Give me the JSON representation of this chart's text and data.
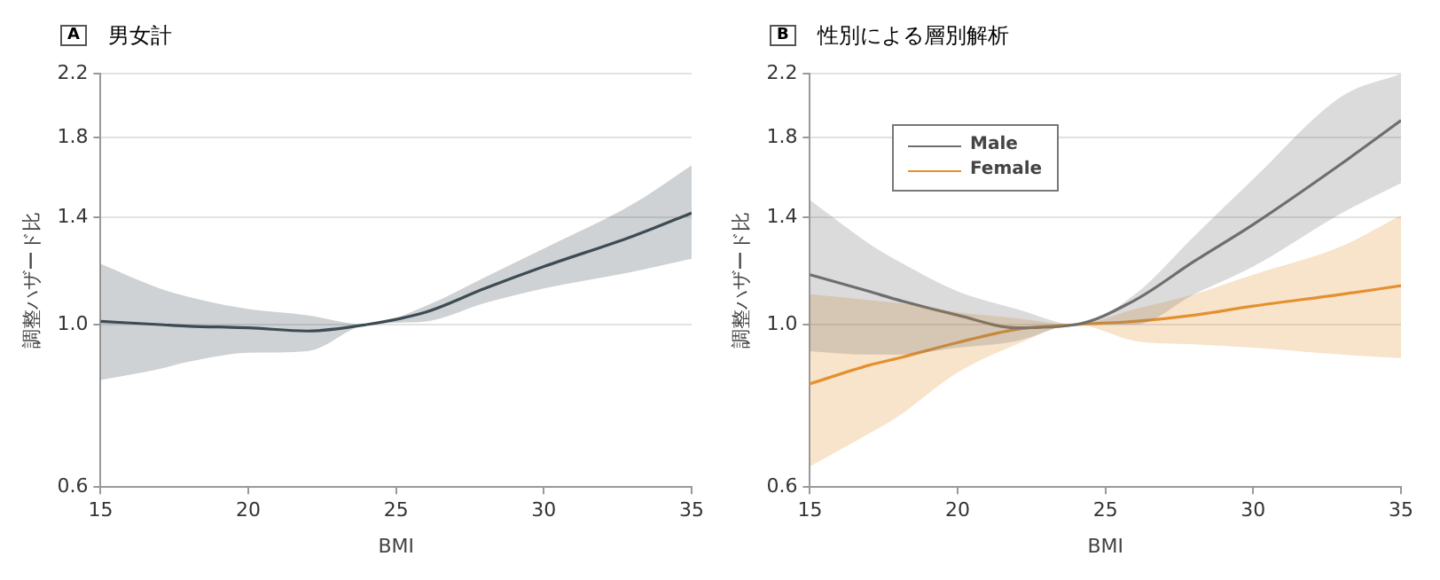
{
  "chart_data": [
    {
      "type": "line",
      "annotations": [
        "A"
      ],
      "title": "男女計",
      "xlabel": "BMI",
      "ylabel": "調整ハザード比",
      "x": [
        15,
        17,
        18,
        20,
        22,
        24,
        26,
        28,
        30,
        33,
        35
      ],
      "xlim": [
        15,
        35
      ],
      "xticks": [
        15,
        20,
        25,
        30,
        35
      ],
      "ylim": [
        0.6,
        2.2
      ],
      "yticks": [
        0.6,
        {
          "value": 1,
          "label": "1.0"
        },
        1.4,
        1.8,
        2.2
      ],
      "log": "y",
      "grid": "y",
      "legend": false,
      "marker": "none",
      "line_style": "solid",
      "series": [
        {
          "color": "#3d4b55",
          "values": [
            1.01,
            1.0,
            0.995,
            0.99,
            0.98,
            1.0,
            1.04,
            1.12,
            1.2,
            1.32,
            1.42
          ],
          "lower": [
            0.84,
            0.87,
            0.89,
            0.915,
            0.92,
            1.0,
            1.01,
            1.07,
            1.12,
            1.18,
            1.23
          ],
          "upper": [
            1.21,
            1.12,
            1.09,
            1.05,
            1.03,
            1.0,
            1.06,
            1.16,
            1.27,
            1.46,
            1.65
          ]
        }
      ]
    },
    {
      "type": "line",
      "annotations": [
        "B"
      ],
      "title": "性別による層別解析",
      "xlabel": "BMI",
      "ylabel": "調整ハザード比",
      "x": [
        15,
        17,
        18,
        20,
        22,
        24,
        26,
        28,
        30,
        33,
        35
      ],
      "xlim": [
        15,
        35
      ],
      "xticks": [
        15,
        20,
        25,
        30,
        35
      ],
      "ylim": [
        0.6,
        2.2
      ],
      "yticks": [
        0.6,
        {
          "value": 1,
          "label": "1.0"
        },
        1.4,
        1.8,
        2.2
      ],
      "log": "y",
      "grid": "y",
      "legend": "top left",
      "marker": "none",
      "line_style": "solid",
      "series": [
        {
          "name": "Male",
          "color": "#6e6e6e",
          "values": [
            1.17,
            1.11,
            1.08,
            1.03,
            0.99,
            1.0,
            1.08,
            1.22,
            1.37,
            1.66,
            1.9
          ],
          "lower": [
            0.92,
            0.91,
            0.91,
            0.93,
            0.95,
            1.0,
            1.0,
            1.1,
            1.2,
            1.42,
            1.56
          ],
          "upper": [
            1.48,
            1.29,
            1.22,
            1.11,
            1.05,
            1.0,
            1.1,
            1.32,
            1.58,
            2.05,
            2.2
          ]
        },
        {
          "name": "Female",
          "color": "#e5902f",
          "values": [
            0.83,
            0.88,
            0.9,
            0.945,
            0.985,
            1.0,
            1.01,
            1.03,
            1.06,
            1.1,
            1.13
          ],
          "lower": [
            0.64,
            0.71,
            0.75,
            0.86,
            0.94,
            1.0,
            0.95,
            0.94,
            0.93,
            0.91,
            0.9
          ],
          "upper": [
            1.1,
            1.08,
            1.07,
            1.04,
            1.02,
            1.0,
            1.05,
            1.1,
            1.17,
            1.28,
            1.41
          ]
        }
      ]
    }
  ]
}
